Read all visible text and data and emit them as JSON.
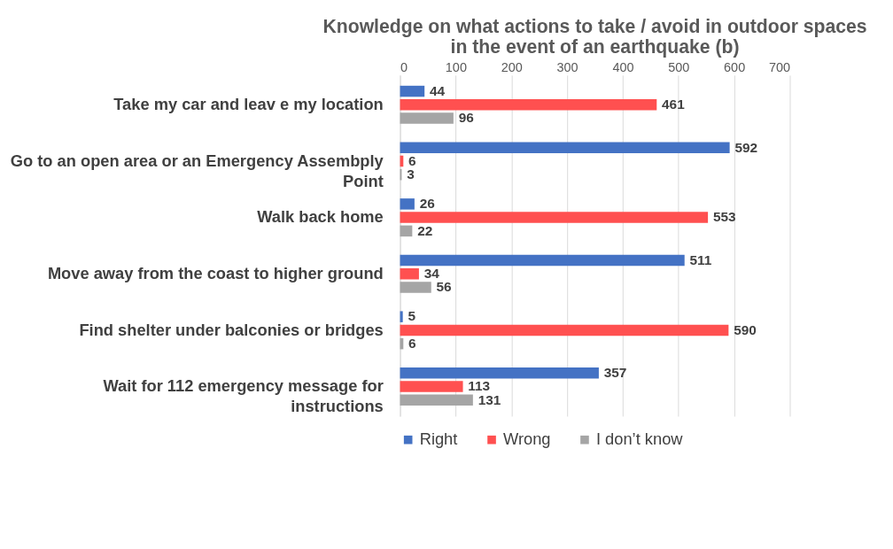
{
  "chart_data": {
    "type": "bar",
    "orientation": "horizontal",
    "title": "Knowledge on what actions to take / avoid in outdoor spaces in the event of an earthquake (b)",
    "categories": [
      "Take my car and leav e my location",
      "Go to an open area or an Emergency Assembply Point",
      "Walk back home",
      "Move away from the coast to higher ground",
      "Find shelter under balconies or bridges",
      "Wait for 112 emergency message for instructions"
    ],
    "series": [
      {
        "name": "Right",
        "color": "#4472c4",
        "values": [
          44,
          592,
          26,
          511,
          5,
          357
        ]
      },
      {
        "name": "Wrong",
        "color": "#ff5050",
        "values": [
          461,
          6,
          553,
          34,
          590,
          113
        ]
      },
      {
        "name": "I don’t know",
        "color": "#a5a5a5",
        "values": [
          96,
          3,
          22,
          56,
          6,
          131
        ]
      }
    ],
    "xlim": [
      0,
      700
    ],
    "xticks": [
      0,
      100,
      200,
      300,
      400,
      500,
      600,
      700
    ],
    "grid": "x",
    "legend": "bottom",
    "data_labels": true
  }
}
